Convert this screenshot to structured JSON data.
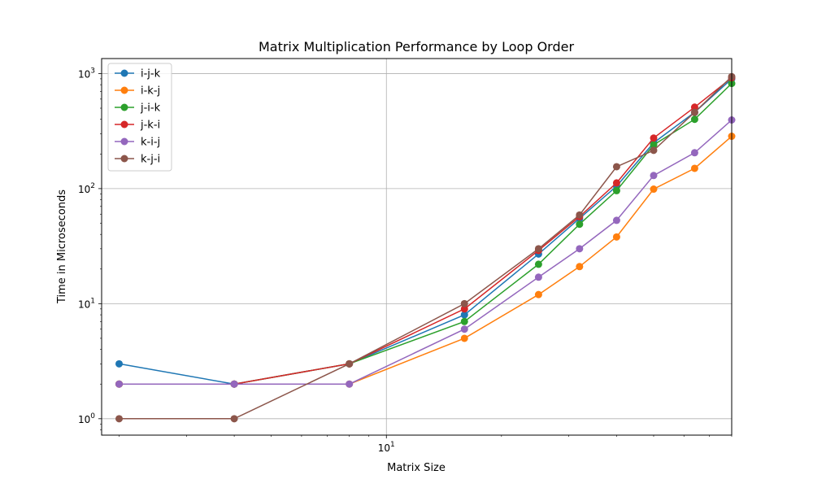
{
  "chart_data": {
    "type": "line",
    "title": "Matrix Multiplication Performance by Loop Order",
    "xlabel": "Matrix Size",
    "ylabel": "Time in Microseconds",
    "xscale": "log",
    "yscale": "log",
    "xlim": [
      1.8,
      80
    ],
    "ylim": [
      0.72,
      1350
    ],
    "grid": true,
    "legend_position": "top-left",
    "x_ticks": [
      {
        "value": 10,
        "base": "10",
        "exp": "1"
      }
    ],
    "y_ticks": [
      {
        "value": 1,
        "base": "10",
        "exp": "0"
      },
      {
        "value": 10,
        "base": "10",
        "exp": "1"
      },
      {
        "value": 100,
        "base": "10",
        "exp": "2"
      },
      {
        "value": 1000,
        "base": "10",
        "exp": "3"
      }
    ],
    "x": [
      2,
      4,
      8,
      16,
      25,
      32,
      40,
      50,
      64,
      80
    ],
    "series": [
      {
        "name": "i-j-k",
        "color": "#1f77b4",
        "values": [
          3,
          2,
          3,
          8,
          27,
          55,
          105,
          250,
          460,
          900
        ]
      },
      {
        "name": "i-k-j",
        "color": "#ff7f0e",
        "values": [
          2,
          2,
          2,
          5,
          12,
          21,
          38,
          99,
          150,
          285
        ]
      },
      {
        "name": "j-i-k",
        "color": "#2ca02c",
        "values": [
          2,
          2,
          3,
          7,
          22,
          49,
          96,
          240,
          400,
          820
        ]
      },
      {
        "name": "j-k-i",
        "color": "#d62728",
        "values": [
          2,
          2,
          3,
          9,
          29,
          57,
          112,
          275,
          510,
          920
        ]
      },
      {
        "name": "k-i-j",
        "color": "#9467bd",
        "values": [
          2,
          2,
          2,
          6,
          17,
          30,
          53,
          130,
          205,
          395
        ]
      },
      {
        "name": "k-j-i",
        "color": "#8c564b",
        "values": [
          1,
          1,
          3,
          10,
          30,
          59,
          155,
          215,
          460,
          940
        ]
      }
    ]
  }
}
